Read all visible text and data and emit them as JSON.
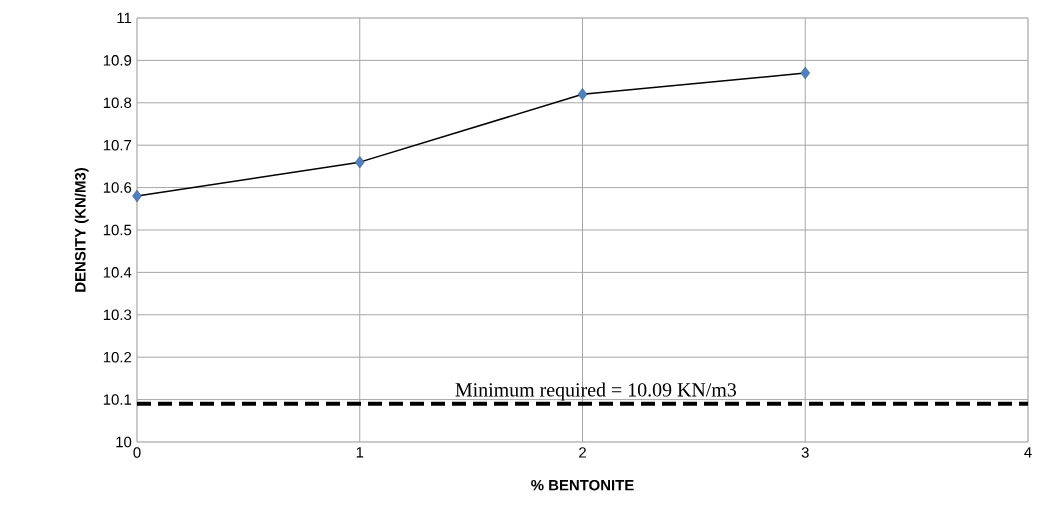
{
  "chart_data": {
    "type": "line",
    "xlabel": "% BENTONITE",
    "ylabel": "DENSITY  (KN/M3)",
    "x": [
      0,
      1,
      2,
      3
    ],
    "series": [
      {
        "color": "#000000",
        "colors": [
          "#4f81bd",
          "#4f81bd",
          "#4f81bd",
          "#4f81bd"
        ],
        "values": [
          10.58,
          10.66,
          10.82,
          10.87
        ]
      }
    ],
    "xlim": [
      0,
      4
    ],
    "ylim": [
      10,
      11
    ],
    "xticks": [
      0,
      1,
      2,
      3,
      4
    ],
    "yticks": [
      10,
      10.1,
      10.2,
      10.3,
      10.4,
      10.5,
      10.6,
      10.7,
      10.8,
      10.9,
      11
    ],
    "grid": true,
    "marker": "diamond",
    "line_style": "solid",
    "ref_lines": [
      {
        "axis": "y",
        "value": 10.09,
        "label": "Minimum required = 10.09 KN/m3",
        "line_style": "dashed",
        "color": "#000000"
      }
    ]
  }
}
